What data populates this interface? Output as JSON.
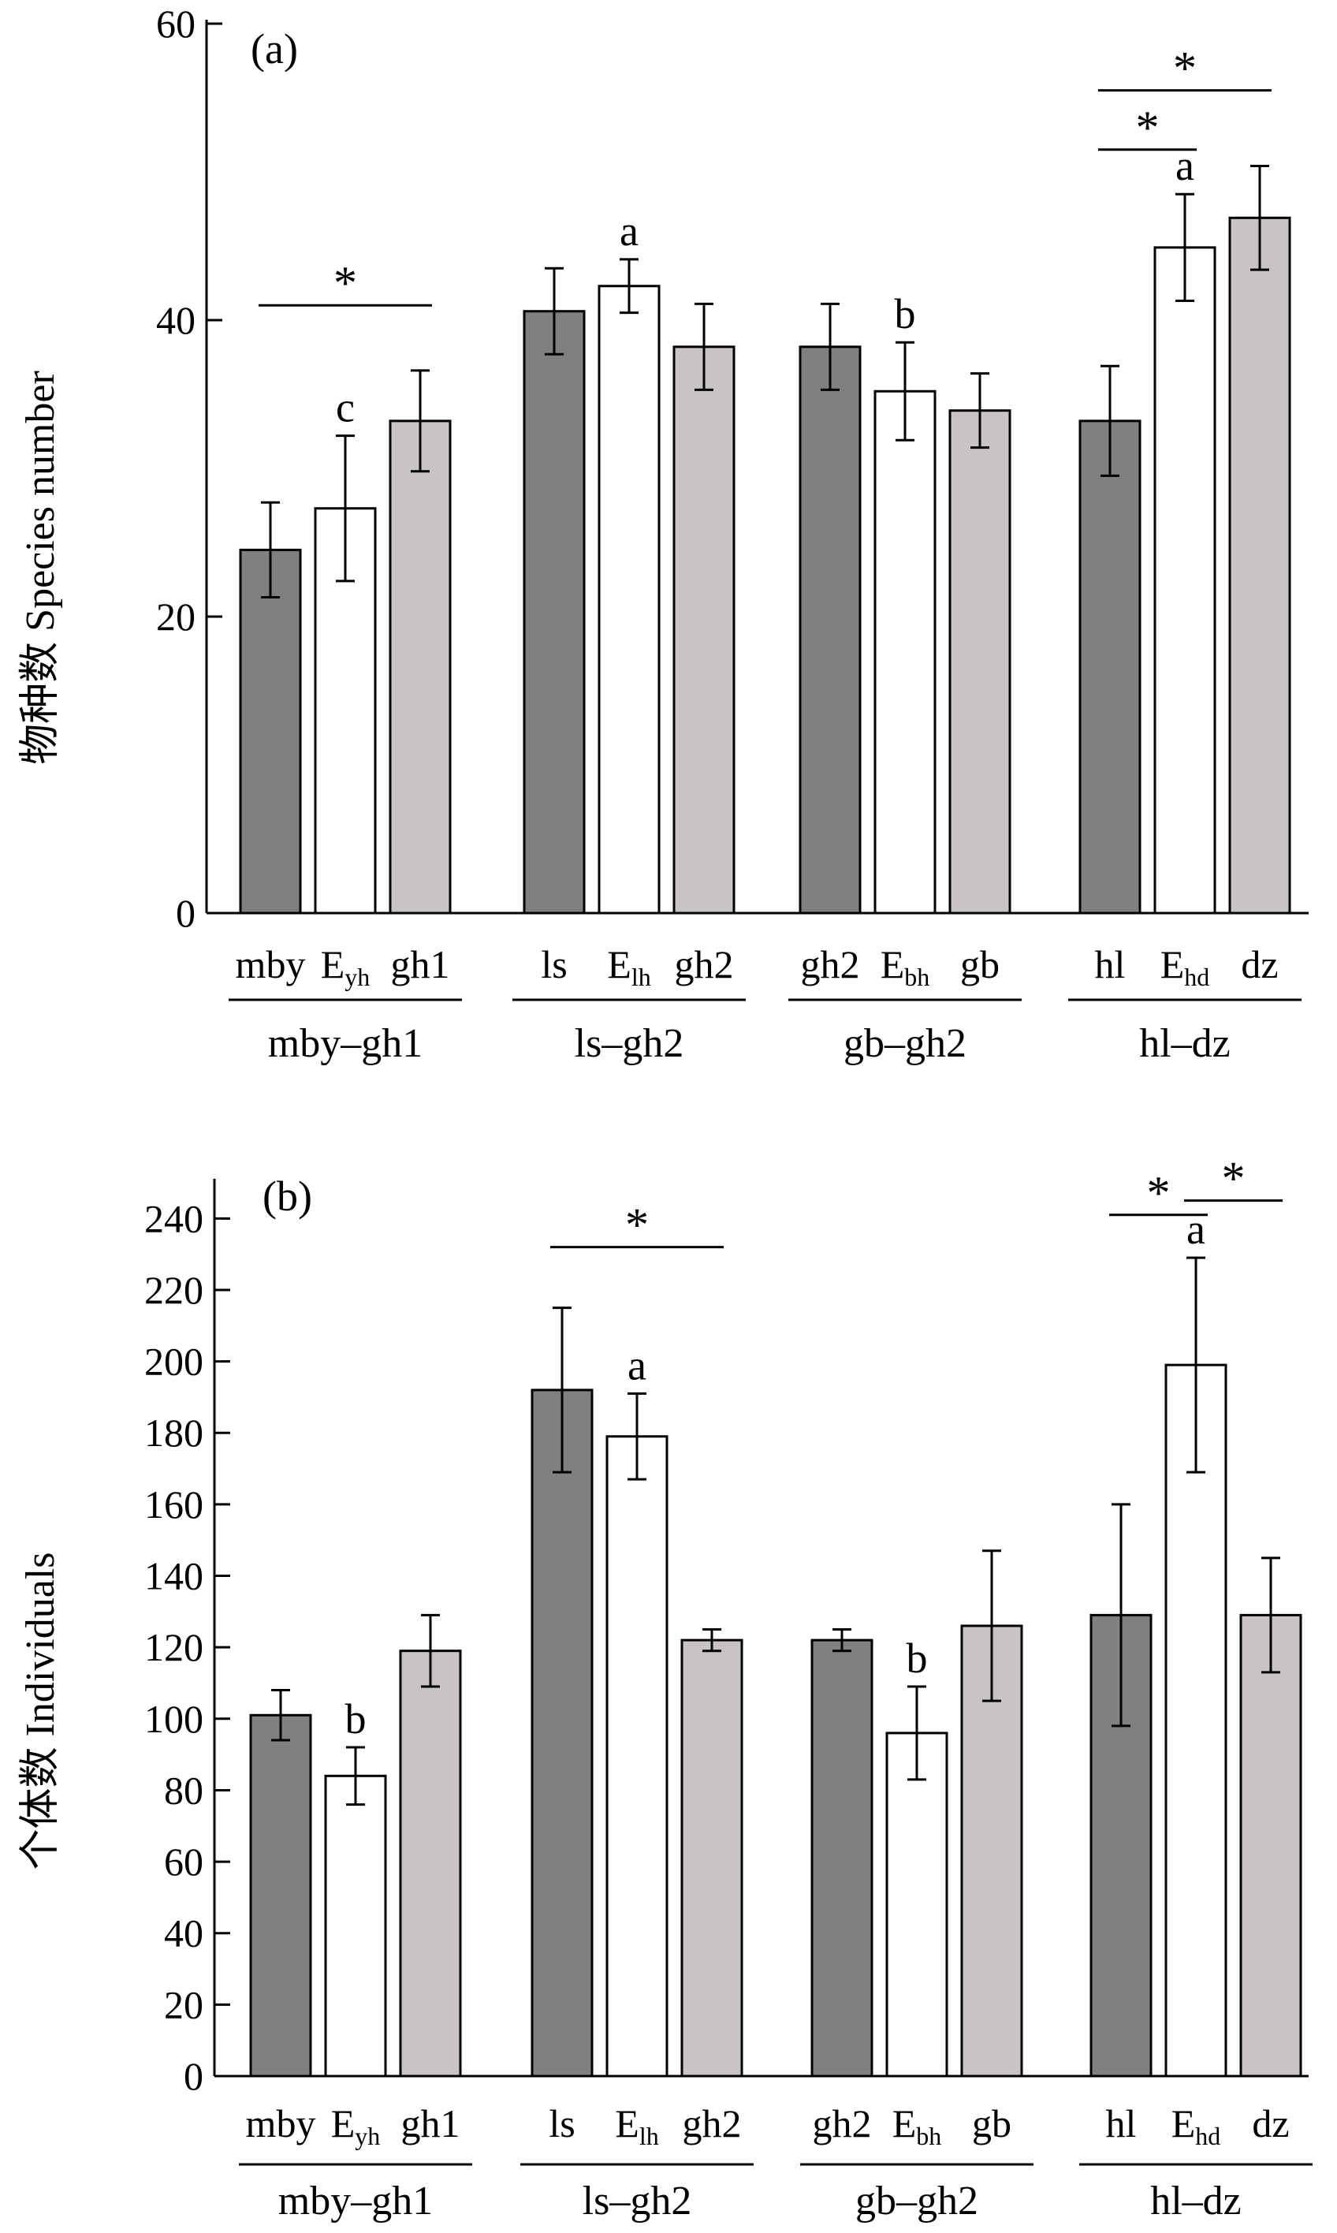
{
  "chart_data": [
    {
      "type": "bar",
      "panel_label": "(a)",
      "ylabel": "物种数 Species number",
      "ylim": [
        0,
        60
      ],
      "yticks": [
        0,
        20,
        40,
        60
      ],
      "series_colors": [
        "#808080",
        "#ffffff",
        "#c8c4c6"
      ],
      "groups": [
        {
          "name": "mby–gh1",
          "bars": [
            {
              "base": "mby",
              "sub": "",
              "value": 24.5,
              "err": 3.2,
              "sig": ""
            },
            {
              "base": "E",
              "sub": "yh",
              "value": 27.3,
              "err": 4.9,
              "sig": "c"
            },
            {
              "base": "gh1",
              "sub": "",
              "value": 33.2,
              "err": 3.4,
              "sig": ""
            }
          ]
        },
        {
          "name": "ls–gh2",
          "bars": [
            {
              "base": "ls",
              "sub": "",
              "value": 40.6,
              "err": 2.9,
              "sig": ""
            },
            {
              "base": "E",
              "sub": "lh",
              "value": 42.3,
              "err": 1.8,
              "sig": "a"
            },
            {
              "base": "gh2",
              "sub": "",
              "value": 38.2,
              "err": 2.9,
              "sig": ""
            }
          ]
        },
        {
          "name": "gb–gh2",
          "bars": [
            {
              "base": "gh2",
              "sub": "",
              "value": 38.2,
              "err": 2.9,
              "sig": ""
            },
            {
              "base": "E",
              "sub": "bh",
              "value": 35.2,
              "err": 3.3,
              "sig": "b"
            },
            {
              "base": "gb",
              "sub": "",
              "value": 33.9,
              "err": 2.5,
              "sig": ""
            }
          ]
        },
        {
          "name": "hl–dz",
          "bars": [
            {
              "base": "hl",
              "sub": "",
              "value": 33.2,
              "err": 3.7,
              "sig": ""
            },
            {
              "base": "E",
              "sub": "hd",
              "value": 44.9,
              "err": 3.6,
              "sig": "a"
            },
            {
              "base": "dz",
              "sub": "",
              "value": 46.9,
              "err": 3.5,
              "sig": ""
            }
          ]
        }
      ],
      "significance": [
        {
          "group": 0,
          "from": 0,
          "to": 2,
          "level": 41.0,
          "label": "*"
        },
        {
          "group": 3,
          "from": 0,
          "to": 1,
          "level": 51.5,
          "label": "*"
        },
        {
          "group": 3,
          "from": 0,
          "to": 2,
          "level": 55.5,
          "label": "*"
        }
      ]
    },
    {
      "type": "bar",
      "panel_label": "(b)",
      "ylabel": "个体数 Individuals",
      "ylim": [
        0,
        250
      ],
      "yticks": [
        0,
        20,
        40,
        60,
        80,
        100,
        120,
        140,
        160,
        180,
        200,
        220,
        240
      ],
      "series_colors": [
        "#808080",
        "#ffffff",
        "#c8c4c6"
      ],
      "groups": [
        {
          "name": "mby–gh1",
          "bars": [
            {
              "base": "mby",
              "sub": "",
              "value": 101,
              "err": 7,
              "sig": ""
            },
            {
              "base": "E",
              "sub": "yh",
              "value": 84,
              "err": 8,
              "sig": "b"
            },
            {
              "base": "gh1",
              "sub": "",
              "value": 119,
              "err": 10,
              "sig": ""
            }
          ]
        },
        {
          "name": "ls–gh2",
          "bars": [
            {
              "base": "ls",
              "sub": "",
              "value": 192,
              "err": 23,
              "sig": ""
            },
            {
              "base": "E",
              "sub": "lh",
              "value": 179,
              "err": 12,
              "sig": "a"
            },
            {
              "base": "gh2",
              "sub": "",
              "value": 122,
              "err": 3,
              "sig": ""
            }
          ]
        },
        {
          "name": "gb–gh2",
          "bars": [
            {
              "base": "gh2",
              "sub": "",
              "value": 122,
              "err": 3,
              "sig": ""
            },
            {
              "base": "E",
              "sub": "bh",
              "value": 96,
              "err": 13,
              "sig": "b"
            },
            {
              "base": "gb",
              "sub": "",
              "value": 126,
              "err": 21,
              "sig": ""
            }
          ]
        },
        {
          "name": "hl–dz",
          "bars": [
            {
              "base": "hl",
              "sub": "",
              "value": 129,
              "err": 31,
              "sig": ""
            },
            {
              "base": "E",
              "sub": "hd",
              "value": 199,
              "err": 30,
              "sig": "a"
            },
            {
              "base": "dz",
              "sub": "",
              "value": 129,
              "err": 16,
              "sig": ""
            }
          ]
        }
      ],
      "significance": [
        {
          "group": 1,
          "from": 0,
          "to": 2,
          "level": 232,
          "label": "*"
        },
        {
          "group": 3,
          "from": 0,
          "to": 1,
          "level": 241,
          "label": "*"
        },
        {
          "group": 3,
          "from": 1,
          "to": 2,
          "level": 245,
          "label": "*"
        }
      ]
    }
  ]
}
